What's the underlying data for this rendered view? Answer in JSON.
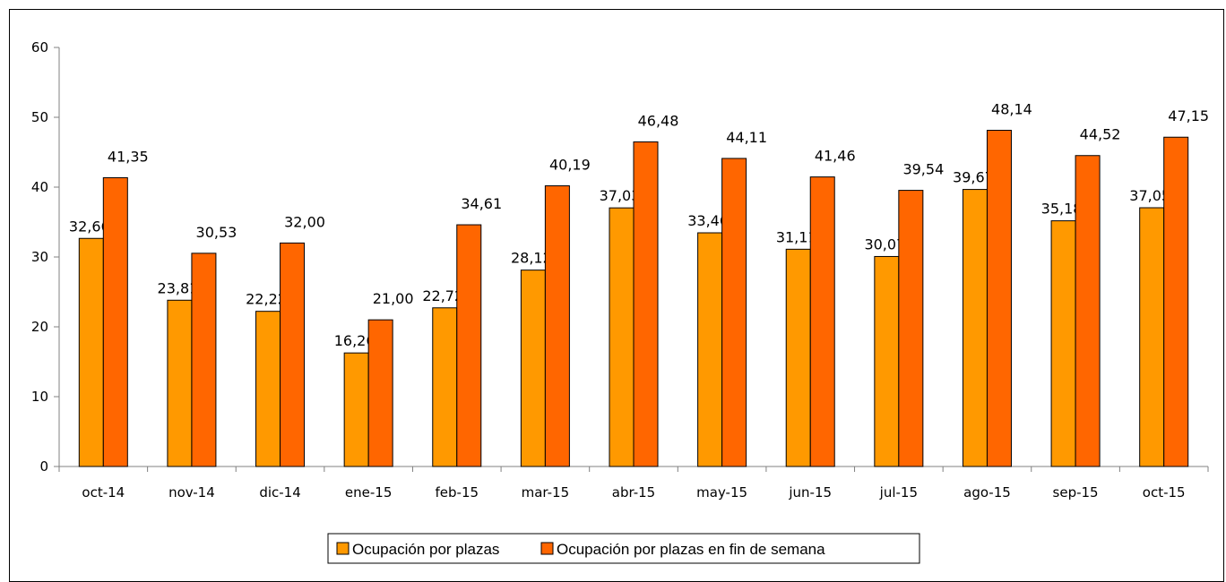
{
  "chart_data": {
    "type": "bar",
    "categories": [
      "oct-14",
      "nov-14",
      "dic-14",
      "ene-15",
      "feb-15",
      "mar-15",
      "abr-15",
      "may-15",
      "jun-15",
      "jul-15",
      "ago-15",
      "sep-15",
      "oct-15"
    ],
    "series": [
      {
        "name": "Ocupación por plazas",
        "color": "#FF9900",
        "values": [
          32.66,
          23.81,
          22.22,
          16.26,
          22.72,
          28.12,
          37.03,
          33.46,
          31.11,
          30.07,
          39.67,
          35.18,
          37.05
        ],
        "labels": [
          "32,66",
          "23,81",
          "22,22",
          "16,26",
          "22,72",
          "28,12",
          "37,03",
          "33,46",
          "31,11",
          "30,07",
          "39,67",
          "35,18",
          "37,05"
        ]
      },
      {
        "name": "Ocupación por plazas en fin de semana",
        "color": "#FF6600",
        "values": [
          41.35,
          30.53,
          32.0,
          21.0,
          34.61,
          40.19,
          46.48,
          44.11,
          41.46,
          39.54,
          48.14,
          44.52,
          47.15
        ],
        "labels": [
          "41,35",
          "30,53",
          "32,00",
          "21,00",
          "34,61",
          "40,19",
          "46,48",
          "44,11",
          "41,46",
          "39,54",
          "48,14",
          "44,52",
          "47,15"
        ]
      }
    ],
    "ylim": [
      0,
      60
    ],
    "yticks": [
      "0",
      "10",
      "20",
      "30",
      "40",
      "50",
      "60"
    ],
    "grid": false,
    "legend_position": "bottom-center",
    "title": "",
    "xlabel": "",
    "ylabel": ""
  }
}
